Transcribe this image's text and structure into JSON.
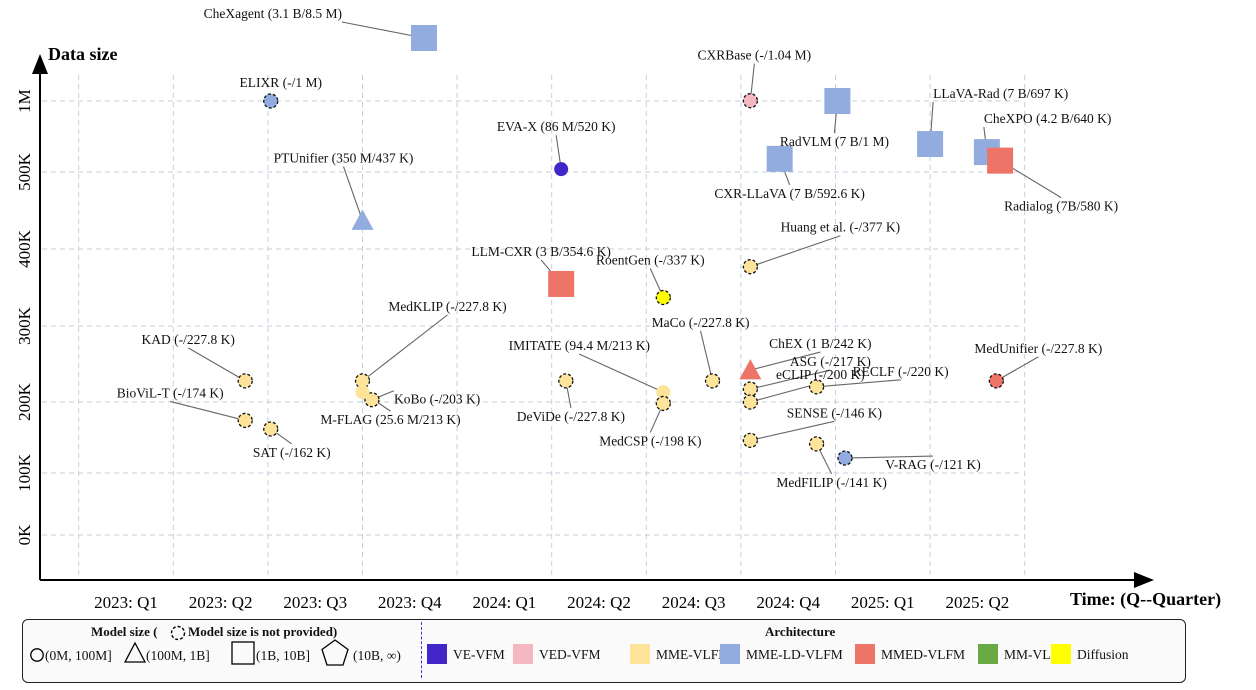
{
  "chart_data": {
    "type": "scatter",
    "x_axis_label": "Time: (Q--Quarter)",
    "y_axis_label": "Data size",
    "x_ticks": [
      "2023: Q1",
      "2023: Q2",
      "2023: Q3",
      "2023: Q4",
      "2024: Q1",
      "2024: Q2",
      "2024: Q3",
      "2024: Q4",
      "2025: Q1",
      "2025: Q2"
    ],
    "y_ticks": [
      "0K",
      "100K",
      "200K",
      "300K",
      "400K",
      "500K",
      "1M"
    ],
    "grid": true,
    "colors": {
      "VE-VFM": "#4326c9",
      "VED-VFM": "#f5b7c0",
      "MME-VLFM": "#fde49a",
      "MME-LD-VLFM": "#93acdf",
      "MMED-VLFM": "#ee7468",
      "MM-VLFM": "#6aaa45",
      "Diffusion": "#ffff00"
    },
    "points": [
      {
        "name": "CheXagent",
        "label": "CheXagent (3.1 B/8.5 M)",
        "x": 4.15,
        "data_size": "8.5 M",
        "size_class": "(1B, 10B]",
        "shape": "square",
        "arch": "MME-LD-VLFM",
        "provided": true,
        "lx": 3.05,
        "ly": "above-1M",
        "ldir": "left"
      },
      {
        "name": "ELIXR",
        "label": "ELIXR (-/1 M)",
        "x": 2.53,
        "data_size": "1 M",
        "size_class": "(0M, 100M]",
        "shape": "circle",
        "arch": "MME-LD-VLFM",
        "provided": false
      },
      {
        "name": "EVA-X",
        "label": "EVA-X (86 M/520 K)",
        "x": 5.6,
        "data_size": "520 K",
        "size_class": "(0M, 100M]",
        "shape": "circle",
        "arch": "VE-VFM",
        "provided": true
      },
      {
        "name": "PTUnifier",
        "label": "PTUnifier (350 M/437 K)",
        "x": 3.5,
        "data_size": "437 K",
        "size_class": "(100M, 1B]",
        "shape": "triangle",
        "arch": "MME-LD-VLFM",
        "provided": true
      },
      {
        "name": "CXRBase",
        "label": "CXRBase (-/1.04 M)",
        "x": 7.6,
        "data_size": "1.04 M",
        "size_class": "(0M, 100M]",
        "shape": "circle",
        "arch": "VED-VFM",
        "provided": false
      },
      {
        "name": "LLaVA-Rad",
        "label": "LLaVA-Rad (7 B/697 K)",
        "x": 9.5,
        "data_size": "697 K",
        "size_class": "(1B, 10B]",
        "shape": "square",
        "arch": "MME-LD-VLFM",
        "provided": true
      },
      {
        "name": "RadVLM",
        "label": "RadVLM (7 B/1 M)",
        "x": 8.52,
        "data_size": "1 M",
        "size_class": "(1B, 10B]",
        "shape": "square",
        "arch": "MME-LD-VLFM",
        "provided": true
      },
      {
        "name": "CXR-LLaVA",
        "label": "CXR-LLaVA (7 B/592.6 K)",
        "x": 7.91,
        "data_size": "592.6 K",
        "size_class": "(1B, 10B]",
        "shape": "square",
        "arch": "MME-LD-VLFM",
        "provided": true
      },
      {
        "name": "CheXPO",
        "label": "CheXPO (4.2 B/640 K)",
        "x": 10.1,
        "data_size": "640 K",
        "size_class": "(1B, 10B]",
        "shape": "square",
        "arch": "MME-LD-VLFM",
        "provided": true
      },
      {
        "name": "Radialog",
        "label": "Radialog (7B/580 K)",
        "x": 10.24,
        "data_size": "580 K",
        "size_class": "(1B, 10B]",
        "shape": "square",
        "arch": "MMED-VLFM",
        "provided": true
      },
      {
        "name": "LLM-CXR",
        "label": "LLM-CXR (3 B/354.6 K)",
        "x": 5.6,
        "data_size": "354.6 K",
        "size_class": "(1B, 10B]",
        "shape": "square",
        "arch": "MMED-VLFM",
        "provided": true
      },
      {
        "name": "RoentGen",
        "label": "RoentGen (-/337 K)",
        "x": 6.68,
        "data_size": "337 K",
        "size_class": "(0M, 100M]",
        "shape": "circle",
        "arch": "Diffusion",
        "provided": false
      },
      {
        "name": "MedKLIP",
        "label": "MedKLIP (-/227.8 K)",
        "x": 3.5,
        "data_size": "227.8 K",
        "size_class": "(0M, 100M]",
        "shape": "circle",
        "arch": "MME-VLFM",
        "provided": false
      },
      {
        "name": "KAD",
        "label": "KAD (-/227.8 K)",
        "x": 2.26,
        "data_size": "227.8 K",
        "size_class": "(0M, 100M]",
        "shape": "circle",
        "arch": "MME-VLFM",
        "provided": false
      },
      {
        "name": "BioViL-T",
        "label": "BioViL-T (-/174 K)",
        "x": 2.26,
        "data_size": "174 K",
        "size_class": "(0M, 100M]",
        "shape": "circle",
        "arch": "MME-VLFM",
        "provided": false
      },
      {
        "name": "SAT",
        "label": "SAT (-/162 K)",
        "x": 2.53,
        "data_size": "162 K",
        "size_class": "(0M, 100M]",
        "shape": "circle",
        "arch": "MME-VLFM",
        "provided": false
      },
      {
        "name": "KoBo",
        "label": "KoBo (-/203 K)",
        "x": 3.6,
        "data_size": "203 K",
        "size_class": "(0M, 100M]",
        "shape": "circle",
        "arch": "MME-VLFM",
        "provided": false
      },
      {
        "name": "M-FLAG",
        "label": "M-FLAG (25.6 M/213 K)",
        "x": 3.5,
        "data_size": "213 K",
        "size_class": "(0M, 100M]",
        "shape": "circle",
        "arch": "MME-VLFM",
        "provided": true
      },
      {
        "name": "IMITATE",
        "label": "IMITATE (94.4 M/213 K)",
        "x": 6.68,
        "data_size": "213 K",
        "size_class": "(0M, 100M]",
        "shape": "circle",
        "arch": "MME-VLFM",
        "provided": true
      },
      {
        "name": "DeViDe",
        "label": "DeViDe (-/227.8 K)",
        "x": 5.65,
        "data_size": "227.8 K",
        "size_class": "(0M, 100M]",
        "shape": "circle",
        "arch": "MME-VLFM",
        "provided": false
      },
      {
        "name": "MedCSP",
        "label": "MedCSP (-/198 K)",
        "x": 6.68,
        "data_size": "198 K",
        "size_class": "(0M, 100M]",
        "shape": "circle",
        "arch": "MME-VLFM",
        "provided": false
      },
      {
        "name": "MaCo",
        "label": "MaCo (-/227.8 K)",
        "x": 7.2,
        "data_size": "227.8 K",
        "size_class": "(0M, 100M]",
        "shape": "circle",
        "arch": "MME-VLFM",
        "provided": false
      },
      {
        "name": "Huang et al.",
        "label": "Huang et al. (-/377 K)",
        "x": 7.6,
        "data_size": "377 K",
        "size_class": "(0M, 100M]",
        "shape": "circle",
        "arch": "MME-VLFM",
        "provided": false
      },
      {
        "name": "ChEX",
        "label": "ChEX (1 B/242 K)",
        "x": 7.6,
        "data_size": "242 K",
        "size_class": "(100M, 1B]",
        "shape": "triangle",
        "arch": "MMED-VLFM",
        "provided": true
      },
      {
        "name": "ASG",
        "label": "ASG (-/217 K)",
        "x": 7.6,
        "data_size": "217 K",
        "size_class": "(0M, 100M]",
        "shape": "circle",
        "arch": "MME-VLFM",
        "provided": false
      },
      {
        "name": "eCLIP",
        "label": "eCLIP (-/200 K)",
        "x": 7.6,
        "data_size": "200 K",
        "size_class": "(0M, 100M]",
        "shape": "circle",
        "arch": "MME-VLFM",
        "provided": false
      },
      {
        "name": "RECLF",
        "label": "RECLF (-/220 K)",
        "x": 8.3,
        "data_size": "220 K",
        "size_class": "(0M, 100M]",
        "shape": "circle",
        "arch": "MME-VLFM",
        "provided": false
      },
      {
        "name": "SENSE",
        "label": "SENSE (-/146 K)",
        "x": 7.6,
        "data_size": "146 K",
        "size_class": "(0M, 100M]",
        "shape": "circle",
        "arch": "MME-VLFM",
        "provided": false
      },
      {
        "name": "MedFILIP",
        "label": "MedFILIP (-/141 K)",
        "x": 8.3,
        "data_size": "141 K",
        "size_class": "(0M, 100M]",
        "shape": "circle",
        "arch": "MME-VLFM",
        "provided": false
      },
      {
        "name": "V-RAG",
        "label": "V-RAG (-/121 K)",
        "x": 8.6,
        "data_size": "121 K",
        "size_class": "(0M, 100M]",
        "shape": "circle",
        "arch": "MME-LD-VLFM",
        "provided": false
      },
      {
        "name": "MedUnifier",
        "label": "MedUnifier (-/227.8 K)",
        "x": 10.2,
        "data_size": "227.8 K",
        "size_class": "(0M, 100M]",
        "shape": "circle",
        "arch": "MMED-VLFM",
        "provided": false
      }
    ]
  },
  "legend": {
    "model_size_title_pre": "Model size (",
    "model_size_title_post": "Model size is not provided)",
    "sizes": [
      "(0M, 100M]",
      "(100M, 1B]",
      "(1B, 10B]",
      "(10B, ∞)"
    ],
    "architecture_title": "Architecture",
    "architectures": [
      "VE-VFM",
      "VED-VFM",
      "MME-VLFM",
      "MME-LD-VLFM",
      "MMED-VLFM",
      "MM-VLFM",
      "Diffusion"
    ]
  }
}
